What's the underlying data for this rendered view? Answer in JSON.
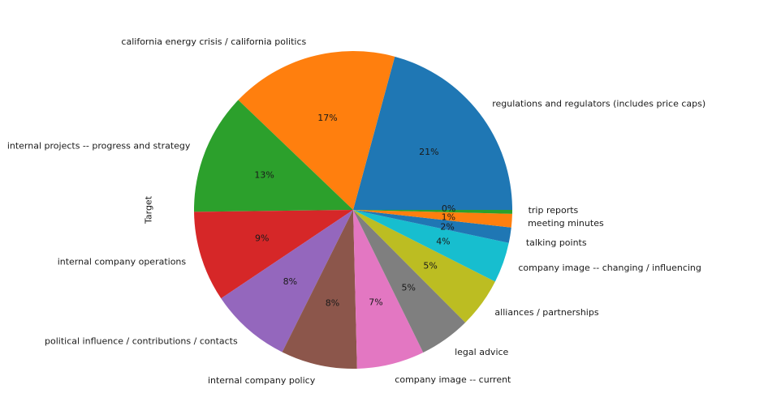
{
  "chart_data": {
    "type": "pie",
    "ylabel": "Target",
    "start_angle_deg": 0,
    "direction": "counterclockwise",
    "slices": [
      {
        "label": "regulations and regulators (includes price caps)",
        "value": 21.2,
        "pct_label": "21%",
        "color": "#1f77b4"
      },
      {
        "label": "california energy crisis / california politics",
        "value": 17.4,
        "pct_label": "17%",
        "color": "#ff7f0e"
      },
      {
        "label": "internal projects -- progress and strategy",
        "value": 12.6,
        "pct_label": "13%",
        "color": "#2ca02c"
      },
      {
        "label": "internal company operations",
        "value": 9.4,
        "pct_label": "9%",
        "color": "#d62728"
      },
      {
        "label": "political influence / contributions / contacts",
        "value": 8.4,
        "pct_label": "8%",
        "color": "#9467bd"
      },
      {
        "label": "internal company policy",
        "value": 7.9,
        "pct_label": "8%",
        "color": "#8c564b"
      },
      {
        "label": "company image -- current",
        "value": 7.0,
        "pct_label": "7%",
        "color": "#e377c2"
      },
      {
        "label": "legal advice",
        "value": 5.3,
        "pct_label": "5%",
        "color": "#7f7f7f"
      },
      {
        "label": "alliances / partnerships",
        "value": 5.2,
        "pct_label": "5%",
        "color": "#bcbd22"
      },
      {
        "label": "company image -- changing / influencing",
        "value": 4.2,
        "pct_label": "4%",
        "color": "#17becf"
      },
      {
        "label": "talking points",
        "value": 1.6,
        "pct_label": "2%",
        "color": "#1f77b4"
      },
      {
        "label": "meeting minutes",
        "value": 1.4,
        "pct_label": "1%",
        "color": "#ff7f0e"
      },
      {
        "label": "trip reports",
        "value": 0.4,
        "pct_label": "0%",
        "color": "#2ca02c"
      }
    ]
  }
}
